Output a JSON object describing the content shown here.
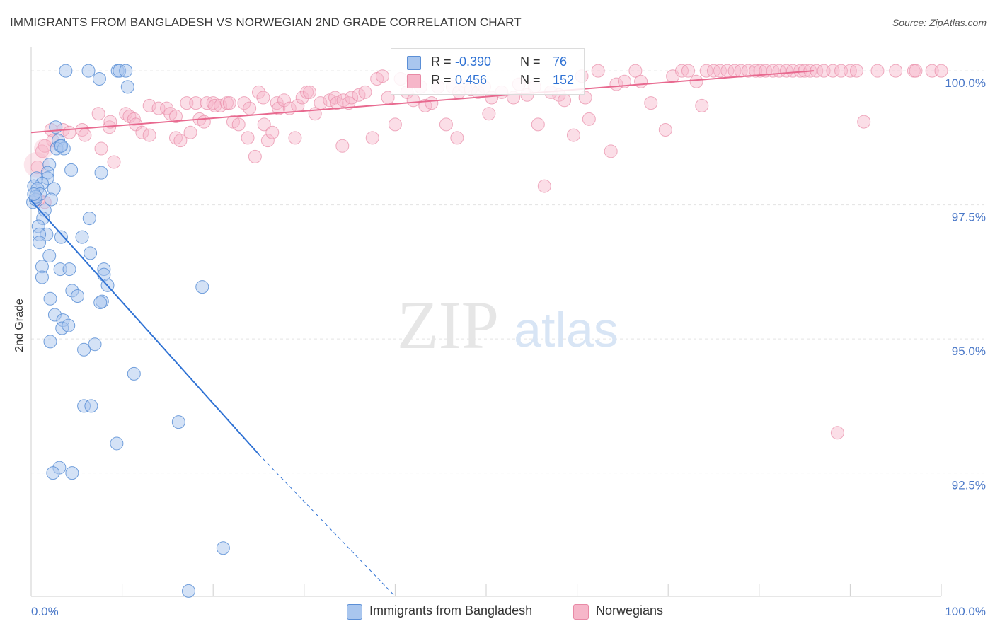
{
  "header": {
    "title": "IMMIGRANTS FROM BANGLADESH VS NORWEGIAN 2ND GRADE CORRELATION CHART",
    "source": "Source: ZipAtlas.com"
  },
  "watermark": {
    "zip": "ZIP",
    "atlas": "atlas"
  },
  "legend_top": {
    "series1": {
      "r_label": "R =",
      "r_value": "-0.390",
      "n_label": "N =",
      "n_value": "76"
    },
    "series2": {
      "r_label": "R =",
      "r_value": "0.456",
      "n_label": "N =",
      "n_value": "152"
    }
  },
  "legend_bottom": {
    "series1": "Immigrants from Bangladesh",
    "series2": "Norwegians"
  },
  "colors": {
    "blue_fill": "#a9c6ee",
    "blue_stroke": "#5b8fd6",
    "blue_line": "#2f72d4",
    "pink_fill": "#f6b6c9",
    "pink_stroke": "#e88aa6",
    "pink_line": "#e8698f",
    "tick_text": "#4a78c8"
  },
  "chart_data": {
    "type": "scatter",
    "title": "IMMIGRANTS FROM BANGLADESH VS NORWEGIAN 2ND GRADE CORRELATION CHART",
    "xlabel": "",
    "ylabel": "2nd Grade",
    "xlim": [
      0,
      100
    ],
    "ylim": [
      90.2,
      100.45
    ],
    "x_tick_labels": [
      "0.0%",
      "100.0%"
    ],
    "y_ticks": [
      {
        "value": 100.0,
        "label": "100.0%"
      },
      {
        "value": 97.5,
        "label": "97.5%"
      },
      {
        "value": 95.0,
        "label": "95.0%"
      },
      {
        "value": 92.5,
        "label": "92.5%"
      }
    ],
    "series": [
      {
        "name": "Immigrants from Bangladesh",
        "color": "blue",
        "trend": {
          "x0": 0.0,
          "y0": 97.58,
          "x1": 25.0,
          "y1": 92.85,
          "dash_to_x": 40.0,
          "dash_to_y": 90.2
        },
        "points": [
          [
            3.8,
            100.0
          ],
          [
            6.3,
            100.0
          ],
          [
            9.5,
            100.0
          ],
          [
            7.5,
            99.85
          ],
          [
            9.7,
            100.0
          ],
          [
            10.4,
            100.0
          ],
          [
            10.6,
            99.7
          ],
          [
            2.7,
            98.95
          ],
          [
            3.0,
            98.7
          ],
          [
            3.2,
            98.6
          ],
          [
            2.8,
            98.55
          ],
          [
            3.6,
            98.55
          ],
          [
            3.3,
            98.6
          ],
          [
            2.0,
            98.25
          ],
          [
            1.8,
            98.1
          ],
          [
            1.8,
            98.0
          ],
          [
            0.6,
            98.0
          ],
          [
            1.2,
            97.9
          ],
          [
            0.3,
            97.85
          ],
          [
            4.4,
            98.15
          ],
          [
            7.7,
            98.1
          ],
          [
            0.7,
            97.8
          ],
          [
            1.0,
            97.7
          ],
          [
            0.2,
            97.55
          ],
          [
            2.5,
            97.8
          ],
          [
            2.2,
            97.6
          ],
          [
            1.5,
            97.4
          ],
          [
            0.5,
            97.6
          ],
          [
            0.5,
            97.65
          ],
          [
            0.3,
            97.7
          ],
          [
            6.4,
            97.25
          ],
          [
            1.3,
            97.25
          ],
          [
            0.8,
            97.1
          ],
          [
            1.7,
            96.95
          ],
          [
            0.9,
            96.95
          ],
          [
            0.9,
            96.8
          ],
          [
            3.3,
            96.9
          ],
          [
            5.6,
            96.9
          ],
          [
            6.5,
            96.6
          ],
          [
            2.0,
            96.55
          ],
          [
            1.2,
            96.35
          ],
          [
            3.2,
            96.3
          ],
          [
            4.2,
            96.3
          ],
          [
            8.0,
            96.3
          ],
          [
            8.0,
            96.2
          ],
          [
            1.2,
            96.15
          ],
          [
            8.4,
            96.0
          ],
          [
            18.8,
            95.97
          ],
          [
            4.5,
            95.9
          ],
          [
            5.1,
            95.8
          ],
          [
            2.1,
            95.75
          ],
          [
            7.8,
            95.7
          ],
          [
            7.6,
            95.68
          ],
          [
            2.6,
            95.45
          ],
          [
            3.5,
            95.35
          ],
          [
            3.4,
            95.2
          ],
          [
            4.1,
            95.25
          ],
          [
            2.1,
            94.95
          ],
          [
            7.0,
            94.9
          ],
          [
            5.8,
            94.8
          ],
          [
            11.3,
            94.35
          ],
          [
            5.8,
            93.75
          ],
          [
            6.6,
            93.75
          ],
          [
            16.2,
            93.45
          ],
          [
            9.4,
            93.05
          ],
          [
            3.1,
            92.6
          ],
          [
            2.4,
            92.5
          ],
          [
            4.5,
            92.5
          ],
          [
            21.1,
            91.1
          ],
          [
            17.3,
            90.3
          ]
        ]
      },
      {
        "name": "Norwegians",
        "color": "pink",
        "trend": {
          "x0": 0.0,
          "y0": 98.85,
          "x1": 86.0,
          "y1": 100.0
        },
        "points": [
          [
            0.7,
            98.2
          ],
          [
            1.2,
            98.5
          ],
          [
            2.2,
            98.9
          ],
          [
            3.5,
            98.9
          ],
          [
            4.2,
            98.85
          ],
          [
            5.6,
            98.9
          ],
          [
            5.9,
            98.8
          ],
          [
            2.4,
            98.7
          ],
          [
            1.5,
            98.6
          ],
          [
            7.7,
            98.55
          ],
          [
            9.1,
            98.3
          ],
          [
            1.5,
            97.55
          ],
          [
            0.8,
            97.6
          ],
          [
            7.4,
            99.2
          ],
          [
            8.6,
            98.95
          ],
          [
            8.7,
            99.05
          ],
          [
            10.4,
            99.2
          ],
          [
            10.8,
            99.15
          ],
          [
            11.3,
            99.1
          ],
          [
            11.5,
            99.0
          ],
          [
            12.2,
            98.85
          ],
          [
            13.0,
            98.8
          ],
          [
            13.0,
            99.35
          ],
          [
            14.0,
            99.3
          ],
          [
            14.9,
            99.3
          ],
          [
            15.3,
            99.2
          ],
          [
            15.9,
            99.15
          ],
          [
            15.9,
            98.75
          ],
          [
            16.4,
            98.7
          ],
          [
            17.1,
            99.4
          ],
          [
            17.5,
            98.85
          ],
          [
            18.1,
            99.4
          ],
          [
            18.5,
            99.1
          ],
          [
            19.0,
            99.05
          ],
          [
            19.3,
            99.4
          ],
          [
            20.0,
            99.4
          ],
          [
            20.2,
            99.35
          ],
          [
            20.8,
            99.35
          ],
          [
            21.5,
            99.4
          ],
          [
            21.8,
            99.4
          ],
          [
            22.2,
            99.05
          ],
          [
            22.8,
            99.0
          ],
          [
            23.4,
            99.4
          ],
          [
            23.8,
            98.75
          ],
          [
            24.0,
            99.3
          ],
          [
            24.6,
            98.4
          ],
          [
            25.0,
            99.6
          ],
          [
            25.5,
            99.5
          ],
          [
            25.6,
            99.0
          ],
          [
            26.0,
            98.7
          ],
          [
            26.5,
            98.85
          ],
          [
            27.0,
            99.4
          ],
          [
            27.2,
            99.3
          ],
          [
            27.8,
            99.45
          ],
          [
            28.4,
            99.3
          ],
          [
            29.0,
            98.75
          ],
          [
            29.3,
            99.35
          ],
          [
            29.8,
            99.5
          ],
          [
            30.3,
            99.6
          ],
          [
            30.6,
            99.6
          ],
          [
            31.2,
            99.2
          ],
          [
            31.8,
            99.4
          ],
          [
            32.8,
            99.45
          ],
          [
            33.4,
            99.5
          ],
          [
            33.6,
            99.4
          ],
          [
            34.3,
            99.45
          ],
          [
            34.9,
            99.4
          ],
          [
            34.2,
            98.6
          ],
          [
            35.2,
            99.5
          ],
          [
            36.0,
            99.55
          ],
          [
            36.7,
            99.6
          ],
          [
            37.5,
            98.75
          ],
          [
            38.0,
            99.85
          ],
          [
            38.6,
            99.9
          ],
          [
            39.2,
            99.5
          ],
          [
            40.0,
            99.0
          ],
          [
            40.6,
            99.85
          ],
          [
            41.3,
            99.6
          ],
          [
            42.0,
            99.45
          ],
          [
            42.8,
            99.7
          ],
          [
            43.3,
            99.35
          ],
          [
            44.0,
            99.4
          ],
          [
            44.7,
            99.7
          ],
          [
            45.6,
            99.0
          ],
          [
            46.3,
            99.7
          ],
          [
            46.8,
            98.75
          ],
          [
            47.0,
            99.6
          ],
          [
            47.7,
            99.7
          ],
          [
            48.3,
            99.65
          ],
          [
            49.1,
            99.6
          ],
          [
            49.8,
            99.7
          ],
          [
            50.3,
            99.2
          ],
          [
            50.6,
            99.5
          ],
          [
            51.7,
            99.6
          ],
          [
            53.0,
            99.5
          ],
          [
            53.6,
            99.75
          ],
          [
            54.5,
            99.55
          ],
          [
            55.3,
            99.7
          ],
          [
            55.7,
            99.0
          ],
          [
            56.4,
            97.85
          ],
          [
            57.1,
            99.6
          ],
          [
            58.0,
            99.55
          ],
          [
            58.6,
            99.45
          ],
          [
            59.6,
            98.8
          ],
          [
            60.5,
            99.9
          ],
          [
            60.9,
            99.5
          ],
          [
            61.3,
            99.1
          ],
          [
            62.3,
            100.0
          ],
          [
            63.7,
            98.5
          ],
          [
            64.3,
            99.75
          ],
          [
            65.2,
            99.8
          ],
          [
            66.4,
            100.0
          ],
          [
            67.0,
            99.8
          ],
          [
            68.1,
            99.4
          ],
          [
            69.7,
            98.9
          ],
          [
            70.5,
            99.9
          ],
          [
            71.5,
            100.0
          ],
          [
            72.2,
            100.0
          ],
          [
            73.1,
            99.8
          ],
          [
            73.7,
            99.35
          ],
          [
            74.2,
            100.0
          ],
          [
            75.0,
            100.0
          ],
          [
            75.7,
            100.0
          ],
          [
            76.5,
            100.0
          ],
          [
            77.3,
            100.0
          ],
          [
            78.0,
            100.0
          ],
          [
            78.8,
            100.0
          ],
          [
            79.6,
            100.0
          ],
          [
            80.1,
            100.0
          ],
          [
            80.7,
            100.0
          ],
          [
            81.5,
            100.0
          ],
          [
            82.2,
            100.0
          ],
          [
            83.0,
            100.0
          ],
          [
            83.7,
            100.0
          ],
          [
            84.5,
            100.0
          ],
          [
            85.0,
            100.0
          ],
          [
            85.6,
            100.0
          ],
          [
            86.3,
            100.0
          ],
          [
            87.1,
            100.0
          ],
          [
            88.1,
            100.0
          ],
          [
            88.6,
            93.25
          ],
          [
            89.0,
            100.0
          ],
          [
            90.0,
            100.0
          ],
          [
            90.7,
            100.0
          ],
          [
            91.5,
            99.05
          ],
          [
            93.0,
            100.0
          ],
          [
            95.0,
            100.0
          ],
          [
            97.0,
            100.0
          ],
          [
            97.2,
            100.0
          ],
          [
            99.0,
            100.0
          ],
          [
            100.0,
            100.0
          ]
        ]
      }
    ]
  }
}
